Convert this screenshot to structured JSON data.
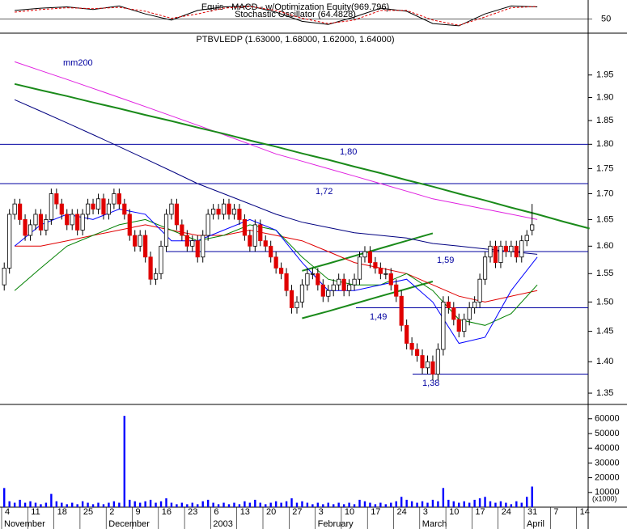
{
  "chart_data": {
    "type": "candlestick",
    "title": "PTBVLEDP (1.63000, 1.68000, 1.62000, 1.64000)",
    "log_scale": true,
    "categories": [
      "4",
      "11",
      "18",
      "25",
      "2",
      "9",
      "16",
      "23",
      "6",
      "13",
      "20",
      "27",
      "3",
      "10",
      "17",
      "24",
      "3",
      "10",
      "17",
      "24",
      "31",
      "7",
      "14"
    ],
    "months": [
      "November",
      "December",
      "2003",
      "February",
      "March",
      "April"
    ],
    "ylim": [
      1.335,
      2.02
    ],
    "yticks": [
      1.35,
      {
        "value": 1.4,
        "label": "1.40"
      },
      1.45,
      {
        "value": 1.5,
        "label": "1.50"
      },
      1.55,
      {
        "value": 1.6,
        "label": "1.60"
      },
      1.65,
      {
        "value": 1.7,
        "label": "1.70"
      },
      1.75,
      {
        "value": 1.8,
        "label": "1.80"
      },
      1.85,
      {
        "value": 1.9,
        "label": "1.90"
      },
      1.95
    ],
    "ohlc": [
      [
        1.53,
        1.57,
        1.52,
        1.56
      ],
      [
        1.56,
        1.67,
        1.55,
        1.66
      ],
      [
        1.66,
        1.69,
        1.65,
        1.68
      ],
      [
        1.68,
        1.69,
        1.64,
        1.65
      ],
      [
        1.65,
        1.66,
        1.61,
        1.62
      ],
      [
        1.62,
        1.65,
        1.61,
        1.64
      ],
      [
        1.64,
        1.67,
        1.63,
        1.66
      ],
      [
        1.66,
        1.67,
        1.62,
        1.63
      ],
      [
        1.63,
        1.66,
        1.62,
        1.65
      ],
      [
        1.65,
        1.71,
        1.64,
        1.7
      ],
      [
        1.7,
        1.71,
        1.67,
        1.68
      ],
      [
        1.68,
        1.69,
        1.65,
        1.66
      ],
      [
        1.66,
        1.67,
        1.63,
        1.64
      ],
      [
        1.64,
        1.67,
        1.63,
        1.66
      ],
      [
        1.66,
        1.67,
        1.62,
        1.63
      ],
      [
        1.63,
        1.67,
        1.62,
        1.66
      ],
      [
        1.66,
        1.69,
        1.65,
        1.68
      ],
      [
        1.68,
        1.69,
        1.66,
        1.67
      ],
      [
        1.67,
        1.7,
        1.66,
        1.69
      ],
      [
        1.69,
        1.7,
        1.65,
        1.66
      ],
      [
        1.66,
        1.69,
        1.65,
        1.68
      ],
      [
        1.68,
        1.71,
        1.67,
        1.7
      ],
      [
        1.7,
        1.71,
        1.67,
        1.68
      ],
      [
        1.68,
        1.69,
        1.65,
        1.66
      ],
      [
        1.66,
        1.67,
        1.61,
        1.62
      ],
      [
        1.62,
        1.63,
        1.59,
        1.6
      ],
      [
        1.6,
        1.63,
        1.59,
        1.62
      ],
      [
        1.62,
        1.63,
        1.57,
        1.58
      ],
      [
        1.58,
        1.59,
        1.53,
        1.54
      ],
      [
        1.54,
        1.56,
        1.53,
        1.55
      ],
      [
        1.55,
        1.61,
        1.54,
        1.6
      ],
      [
        1.6,
        1.67,
        1.59,
        1.66
      ],
      [
        1.66,
        1.69,
        1.65,
        1.68
      ],
      [
        1.68,
        1.69,
        1.63,
        1.64
      ],
      [
        1.64,
        1.65,
        1.61,
        1.62
      ],
      [
        1.62,
        1.63,
        1.59,
        1.6
      ],
      [
        1.6,
        1.62,
        1.59,
        1.61
      ],
      [
        1.61,
        1.62,
        1.57,
        1.58
      ],
      [
        1.58,
        1.63,
        1.57,
        1.62
      ],
      [
        1.62,
        1.67,
        1.61,
        1.66
      ],
      [
        1.66,
        1.68,
        1.65,
        1.67
      ],
      [
        1.67,
        1.68,
        1.65,
        1.66
      ],
      [
        1.66,
        1.69,
        1.65,
        1.68
      ],
      [
        1.68,
        1.69,
        1.65,
        1.66
      ],
      [
        1.66,
        1.68,
        1.65,
        1.67
      ],
      [
        1.67,
        1.68,
        1.64,
        1.65
      ],
      [
        1.65,
        1.66,
        1.61,
        1.62
      ],
      [
        1.62,
        1.63,
        1.59,
        1.6
      ],
      [
        1.6,
        1.65,
        1.59,
        1.64
      ],
      [
        1.64,
        1.65,
        1.6,
        1.61
      ],
      [
        1.61,
        1.62,
        1.59,
        1.6
      ],
      [
        1.6,
        1.61,
        1.57,
        1.58
      ],
      [
        1.58,
        1.59,
        1.55,
        1.56
      ],
      [
        1.56,
        1.57,
        1.54,
        1.55
      ],
      [
        1.55,
        1.56,
        1.51,
        1.52
      ],
      [
        1.52,
        1.53,
        1.48,
        1.49
      ],
      [
        1.49,
        1.51,
        1.48,
        1.5
      ],
      [
        1.5,
        1.54,
        1.49,
        1.53
      ],
      [
        1.53,
        1.56,
        1.52,
        1.55
      ],
      [
        1.55,
        1.56,
        1.54,
        1.55
      ],
      [
        1.55,
        1.56,
        1.52,
        1.53
      ],
      [
        1.53,
        1.54,
        1.5,
        1.51
      ],
      [
        1.51,
        1.53,
        1.5,
        1.52
      ],
      [
        1.52,
        1.54,
        1.51,
        1.53
      ],
      [
        1.53,
        1.55,
        1.52,
        1.54
      ],
      [
        1.54,
        1.55,
        1.51,
        1.52
      ],
      [
        1.52,
        1.54,
        1.51,
        1.53
      ],
      [
        1.53,
        1.55,
        1.52,
        1.54
      ],
      [
        1.54,
        1.59,
        1.53,
        1.58
      ],
      [
        1.58,
        1.6,
        1.57,
        1.59
      ],
      [
        1.59,
        1.6,
        1.56,
        1.57
      ],
      [
        1.57,
        1.58,
        1.55,
        1.56
      ],
      [
        1.56,
        1.57,
        1.54,
        1.55
      ],
      [
        1.55,
        1.56,
        1.54,
        1.55
      ],
      [
        1.55,
        1.56,
        1.52,
        1.53
      ],
      [
        1.53,
        1.54,
        1.5,
        1.51
      ],
      [
        1.51,
        1.52,
        1.45,
        1.46
      ],
      [
        1.46,
        1.47,
        1.42,
        1.43
      ],
      [
        1.43,
        1.44,
        1.41,
        1.42
      ],
      [
        1.42,
        1.43,
        1.4,
        1.41
      ],
      [
        1.41,
        1.42,
        1.38,
        1.39
      ],
      [
        1.39,
        1.41,
        1.38,
        1.4
      ],
      [
        1.4,
        1.41,
        1.37,
        1.38
      ],
      [
        1.38,
        1.43,
        1.37,
        1.42
      ],
      [
        1.42,
        1.51,
        1.41,
        1.5
      ],
      [
        1.5,
        1.51,
        1.48,
        1.49
      ],
      [
        1.49,
        1.5,
        1.46,
        1.47
      ],
      [
        1.47,
        1.48,
        1.44,
        1.45
      ],
      [
        1.45,
        1.48,
        1.44,
        1.47
      ],
      [
        1.47,
        1.5,
        1.46,
        1.49
      ],
      [
        1.49,
        1.51,
        1.48,
        1.5
      ],
      [
        1.5,
        1.55,
        1.49,
        1.54
      ],
      [
        1.54,
        1.59,
        1.53,
        1.58
      ],
      [
        1.58,
        1.61,
        1.57,
        1.6
      ],
      [
        1.6,
        1.61,
        1.56,
        1.57
      ],
      [
        1.57,
        1.61,
        1.56,
        1.6
      ],
      [
        1.6,
        1.61,
        1.58,
        1.59
      ],
      [
        1.59,
        1.61,
        1.58,
        1.6
      ],
      [
        1.6,
        1.61,
        1.57,
        1.58
      ],
      [
        1.58,
        1.62,
        1.57,
        1.61
      ],
      [
        1.61,
        1.63,
        1.6,
        1.62
      ],
      [
        1.63,
        1.68,
        1.62,
        1.64
      ]
    ],
    "up_color": "#ffffff",
    "down_color": "#e00000",
    "lines": [
      {
        "color": "#e020e0",
        "values": [
          1.98,
          1.96,
          1.94,
          1.92,
          1.9,
          1.88,
          1.86,
          1.84,
          1.82,
          1.8,
          1.78,
          1.765,
          1.75,
          1.735,
          1.72,
          1.705,
          1.69,
          1.68,
          1.67,
          1.66,
          1.65,
          null,
          null
        ]
      },
      {
        "color": "#1a8a1a",
        "width": 2,
        "values": [
          1.93,
          1.916,
          1.903,
          1.889,
          1.876,
          1.862,
          1.849,
          1.835,
          1.822,
          1.808,
          1.795,
          1.781,
          1.768,
          1.754,
          1.741,
          1.727,
          1.714,
          1.7,
          1.687,
          1.673,
          1.66,
          1.646,
          1.633
        ]
      },
      {
        "color": "#1a8a1a",
        "width": 2,
        "values": [
          null,
          null,
          null,
          null,
          null,
          null,
          null,
          null,
          null,
          null,
          null,
          1.555,
          1.568,
          1.582,
          1.596,
          1.61,
          1.624,
          null,
          null,
          null,
          null,
          null,
          null
        ]
      },
      {
        "color": "#1a8a1a",
        "width": 2,
        "values": [
          null,
          null,
          null,
          null,
          null,
          null,
          null,
          null,
          null,
          null,
          null,
          1.472,
          1.484,
          1.497,
          1.51,
          1.523,
          1.536,
          null,
          null,
          null,
          null,
          null,
          null
        ]
      },
      {
        "color": "#000080",
        "values": [
          1.895,
          1.87,
          1.845,
          1.82,
          1.795,
          1.77,
          1.745,
          1.72,
          1.7,
          1.68,
          1.66,
          1.645,
          1.635,
          1.625,
          1.62,
          1.615,
          1.605,
          1.6,
          1.595,
          1.59,
          1.585,
          null,
          null
        ]
      },
      {
        "color": "#e00000",
        "values": [
          1.6,
          1.6,
          1.61,
          1.62,
          1.63,
          1.64,
          1.63,
          1.62,
          1.62,
          1.63,
          1.62,
          1.61,
          1.59,
          1.57,
          1.56,
          1.55,
          1.53,
          1.51,
          1.5,
          1.51,
          1.52,
          null,
          null
        ]
      },
      {
        "color": "#008000",
        "values": [
          1.52,
          1.56,
          1.6,
          1.62,
          1.64,
          1.65,
          1.63,
          1.61,
          1.62,
          1.64,
          1.63,
          1.58,
          1.54,
          1.53,
          1.53,
          1.55,
          1.52,
          1.47,
          1.46,
          1.48,
          1.53,
          null,
          null
        ]
      },
      {
        "color": "#0000ff",
        "values": [
          1.6,
          1.64,
          1.66,
          1.65,
          1.67,
          1.66,
          1.61,
          1.61,
          1.63,
          1.65,
          1.63,
          1.57,
          1.52,
          1.52,
          1.53,
          1.54,
          1.5,
          1.43,
          1.44,
          1.52,
          1.58,
          null,
          null
        ]
      }
    ],
    "levels": [
      {
        "value": 1.8,
        "label": "1,80"
      },
      {
        "value": 1.72,
        "label": "1,72"
      },
      {
        "value": 1.59,
        "label": "1,59"
      },
      {
        "value": 1.49,
        "label": "1,49"
      },
      {
        "value": 1.38,
        "label": "1,38"
      }
    ],
    "level_color": "#0000a0",
    "annotation": "mm200",
    "volume": {
      "unit_label": "(x1000)",
      "color": "#0000ff",
      "ylim": [
        0,
        67000
      ],
      "yticks": [
        10000,
        20000,
        30000,
        40000,
        50000,
        60000
      ],
      "values": [
        13000,
        4000,
        3000,
        5000,
        3000,
        4000,
        3000,
        2000,
        3000,
        9000,
        4000,
        3000,
        2000,
        3000,
        2000,
        4000,
        3000,
        2000,
        3000,
        2000,
        3000,
        4000,
        3000,
        62000,
        5000,
        4000,
        3000,
        4000,
        5000,
        3000,
        4000,
        6000,
        3000,
        2000,
        3000,
        2000,
        3000,
        2000,
        4000,
        5000,
        3000,
        2000,
        3000,
        2000,
        3000,
        2000,
        4000,
        3000,
        5000,
        3000,
        2000,
        3000,
        4000,
        3000,
        4000,
        6000,
        3000,
        4000,
        3000,
        2000,
        3000,
        2000,
        3000,
        2000,
        3000,
        2000,
        3000,
        2000,
        5000,
        4000,
        3000,
        2000,
        3000,
        2000,
        3000,
        4000,
        7000,
        5000,
        4000,
        3000,
        4000,
        3000,
        5000,
        4000,
        13000,
        5000,
        4000,
        3000,
        4000,
        3000,
        5000,
        6000,
        7000,
        4000,
        3000,
        4000,
        3000,
        2000,
        4000,
        3000,
        7000,
        14000
      ]
    },
    "indicator": {
      "titles": [
        "Equis - MACD - w/Optimization Equity(969.796)",
        "Stochastic Oscillator (64.4828)"
      ],
      "ylim": [
        20,
        90
      ],
      "yticks": [
        50
      ],
      "series": [
        {
          "color": "#000000",
          "values": [
            70,
            75,
            78,
            72,
            80,
            62,
            48,
            70,
            78,
            80,
            66,
            45,
            38,
            55,
            75,
            68,
            40,
            35,
            62,
            80,
            78
          ]
        },
        {
          "color": "#e00000",
          "values": [
            66,
            72,
            76,
            74,
            77,
            68,
            52,
            62,
            75,
            79,
            70,
            52,
            40,
            48,
            70,
            70,
            48,
            36,
            55,
            76,
            79
          ]
        }
      ]
    }
  }
}
